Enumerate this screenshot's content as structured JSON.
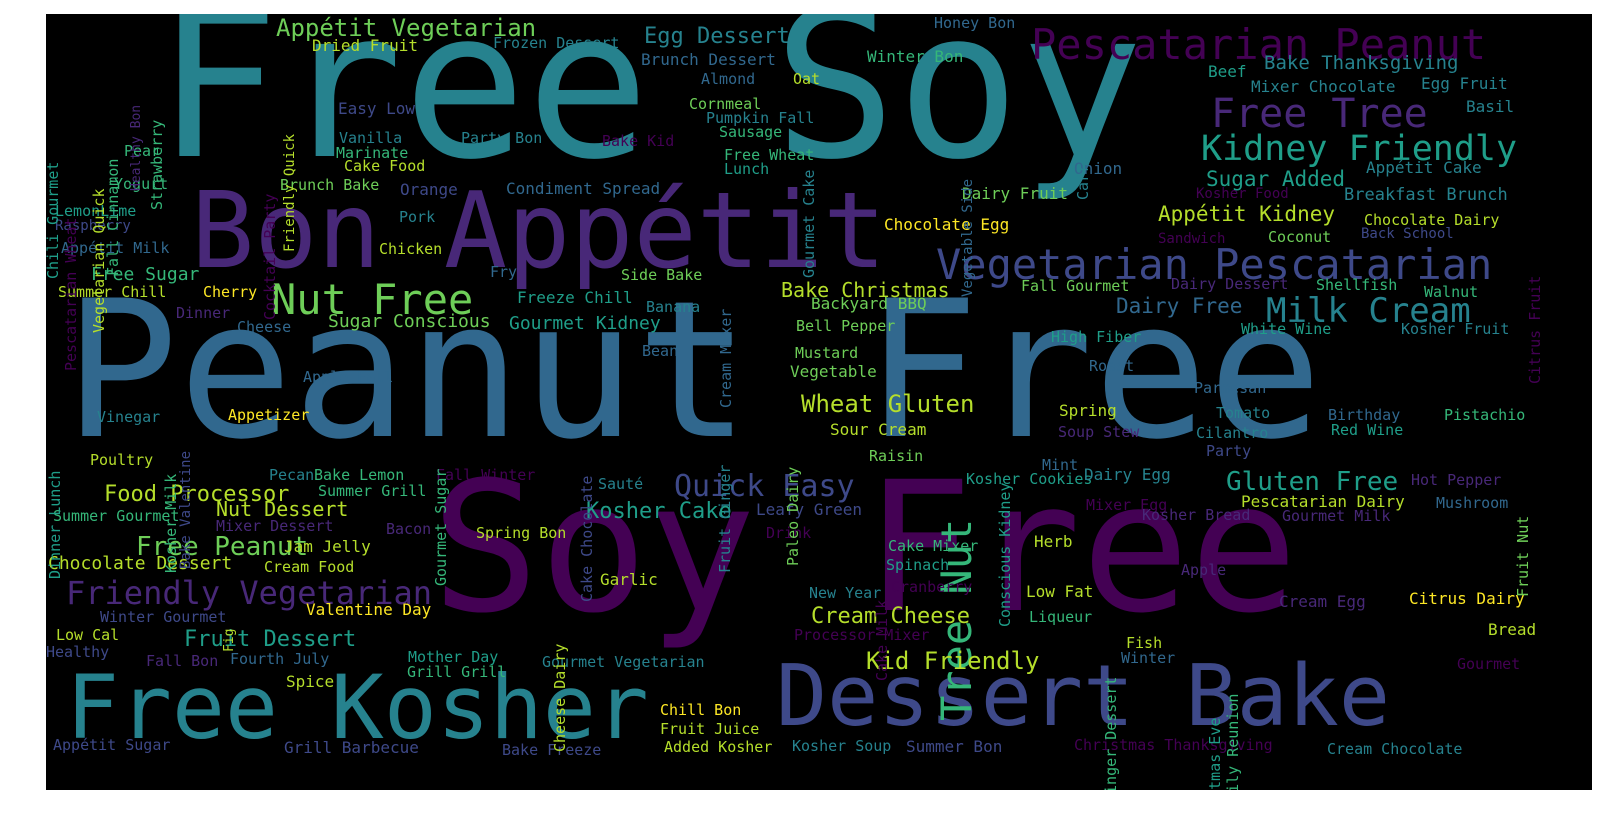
{
  "words": [
    "Free Soy",
    "Peanut Free",
    "Soy Free",
    "Bon Appétit",
    "Free Kosher",
    "Dessert Bake",
    "Pescatarian Peanut",
    "Vegetarian Pescatarian",
    "Kidney Friendly",
    "Free Tree",
    "Nut Free",
    "Friendly Vegetarian",
    "Milk Cream",
    "Tree Nut",
    "Appétit Vegetarian",
    "Quick Easy",
    "Wheat Gluten",
    "Gluten Free",
    "Free Peanut",
    "Kid Friendly",
    "Food Processor",
    "Kosher Cake",
    "Egg Dessert",
    "Fruit Dessert",
    "Cream Cheese",
    "Appétit Kidney",
    "Sugar Added",
    "Dairy Free",
    "Bake Christmas",
    "Nut Dessert",
    "Free Sugar",
    "Bake Thanksgiving",
    "Sugar Conscious",
    "Gourmet Kidney",
    "Breakfast Brunch",
    "Chocolate Dessert",
    "Dried Fruit",
    "Frozen Dessert",
    "Brunch Dessert",
    "Winter Bon",
    "Honey Bon",
    "Mixer Chocolate",
    "Egg Fruit",
    "Beef",
    "Oat",
    "Almond",
    "Easy Low",
    "Cornmeal",
    "Pumpkin Fall",
    "Sausage",
    "Party Bon",
    "Bake Kid",
    "Vanilla",
    "Marinate",
    "Cake Food",
    "Free Wheat",
    "Lunch",
    "Basil",
    "Onion",
    "Appétit Cake",
    "Kosher Food",
    "Pear",
    "Yogurt",
    "Brunch Bake",
    "Orange",
    "Condiment Spread",
    "Dairy Fruit",
    "Chocolate Egg",
    "Chocolate Dairy",
    "Coconut",
    "Back School",
    "Sandwich",
    "LemonLime",
    "Raspberry",
    "Pork",
    "Appétit Milk",
    "Chicken",
    "Fry",
    "Side Bake",
    "Summer Chill",
    "Cherry",
    "Freeze Chill",
    "Banana",
    "Backyard BBQ",
    "Fall Gourmet",
    "Dairy Dessert",
    "Shellfish",
    "Walnut",
    "Dinner",
    "Cheese",
    "Bell Pepper",
    "White Wine",
    "Kosher Fruit",
    "High Fiber",
    "Mustard",
    "Bean",
    "Roast",
    "Apple Fall",
    "Vegetable",
    "Parmesan",
    "Vinegar",
    "Appetizer",
    "Spring",
    "Tomato",
    "Birthday",
    "Pistachio",
    "Sour Cream",
    "Soup Stew",
    "Cilantro",
    "Red Wine",
    "Poultry",
    "Raisin",
    "Party",
    "Mint",
    "Pecan",
    "Bake Lemon",
    "Fall Winter",
    "Kosher Cookies",
    "Dairy Egg",
    "Hot Pepper",
    "Summer Grill",
    "Sauté",
    "Mixer Egg",
    "Pescatarian Dairy",
    "Mushroom",
    "Summer Gourmet",
    "Mixer Dessert",
    "Bacon",
    "Spring Bon",
    "Drink",
    "Leafy Green",
    "Kosher Bread",
    "Gourmet Milk",
    "Jam Jelly",
    "Cake Mixer",
    "Herb",
    "Cream Food",
    "Spinach",
    "Apple",
    "Garlic",
    "Cranberry",
    "Low Fat",
    "Cream Egg",
    "Citrus Dairy",
    "Winter Gourmet",
    "Valentine Day",
    "New Year",
    "Liqueur",
    "Low Cal",
    "Processor Mixer",
    "Bread",
    "Fish",
    "Healthy",
    "Fall Bon",
    "Fourth July",
    "Mother Day",
    "Gourmet Vegetarian",
    "Winter",
    "Gourmet",
    "Grill Grill",
    "Spice",
    "Chill Bon",
    "Fruit Juice",
    "Appétit Sugar",
    "Grill Barbecue",
    "Bake Freeze",
    "Added Kosher",
    "Kosher Soup",
    "Summer Bon",
    "Christmas Thanksgiving",
    "Cream Chocolate",
    "Chili Gourmet",
    "Pescatarian Wheat",
    "Vegetarian Quick",
    "Fall Cinnamon",
    "Healthy Bon",
    "Strawberry",
    "Cocktail Party",
    "Friendly Quick",
    "Gourmet Cake",
    "Carrot",
    "Vegetable Side",
    "Citrus Fruit",
    "Cake Chocolate",
    "Fruit Ginger",
    "Cream Mixer",
    "Gourmet Sugar",
    "Paleo Dairy",
    "Conscious Kidney",
    "Dinner Lunch",
    "Kosher Milk",
    "Bake Valentine",
    "Cake Milk",
    "Cheese Dairy",
    "Fig",
    "Ginger Dessert",
    "Christmas Eve",
    "Family Reunion",
    "Fruit Nut"
  ],
  "colors": {
    "background": "#000000",
    "page": "#ffffff",
    "palette": [
      "#440154",
      "#482878",
      "#3e4989",
      "#31688e",
      "#26828e",
      "#1f9e89",
      "#35b779",
      "#6ece58",
      "#b5de2b",
      "#fde725"
    ]
  }
}
